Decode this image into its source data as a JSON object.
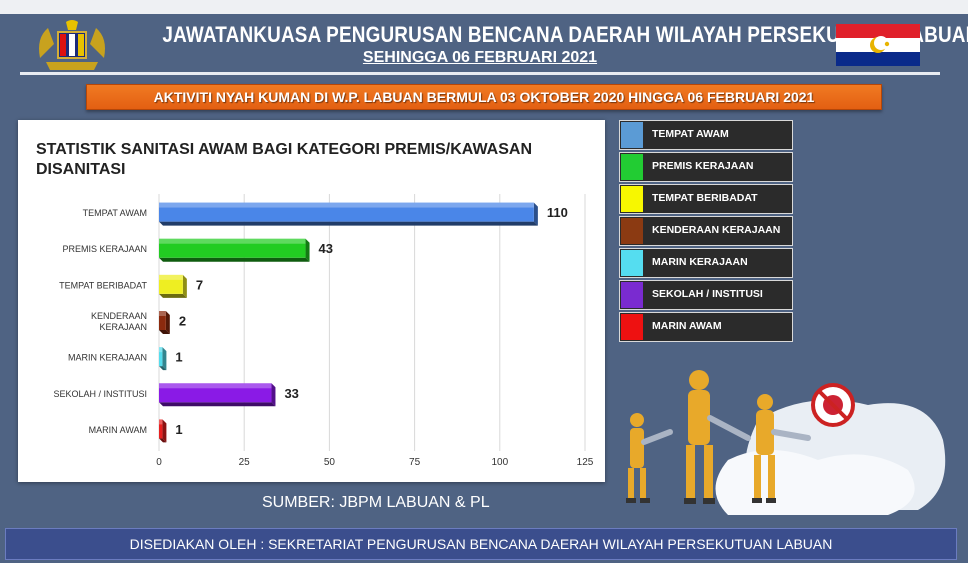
{
  "header": {
    "title": "JAWATANKUASA PENGURUSAN BENCANA DAERAH WILAYAH PERSEKUTUAN  LABUAN",
    "subtitle": "SEHINGGA 06 FEBRUARI 2021"
  },
  "banner": {
    "text": "AKTIVITI NYAH KUMAN DI W.P. LABUAN BERMULA 03 OKTOBER 2020 HINGGA 06 FEBRUARI 2021"
  },
  "chart_data": {
    "type": "bar",
    "orientation": "horizontal",
    "title": "STATISTIK SANITASI AWAM BAGI KATEGORI PREMIS/KAWASAN DISANITASI",
    "categories": [
      "TEMPAT AWAM",
      "PREMIS KERAJAAN",
      "TEMPAT BERIBADAT",
      "KENDERAAN KERAJAAN",
      "MARIN KERAJAAN",
      "SEKOLAH / INSTITUSI",
      "MARIN AWAM"
    ],
    "category_lines": [
      [
        "TEMPAT AWAM"
      ],
      [
        "PREMIS KERAJAAN"
      ],
      [
        "TEMPAT BERIBADAT"
      ],
      [
        "KENDERAAN",
        "KERAJAAN"
      ],
      [
        "MARIN KERAJAAN"
      ],
      [
        "SEKOLAH / INSTITUSI"
      ],
      [
        "MARIN AWAM"
      ]
    ],
    "values": [
      110,
      43,
      7,
      2,
      1,
      33,
      1
    ],
    "colors": [
      "#4a86e8",
      "#22cc22",
      "#eeee22",
      "#8b2a0e",
      "#55ddee",
      "#8a1ae6",
      "#e82020"
    ],
    "xlim": [
      0,
      125
    ],
    "xticks": [
      0,
      25,
      50,
      75,
      100,
      125
    ],
    "grid": true,
    "legend_position": "right"
  },
  "legend": {
    "items": [
      {
        "label": "TEMPAT AWAM",
        "color": "#5b9bd5"
      },
      {
        "label": "PREMIS KERAJAAN",
        "color": "#22cc33"
      },
      {
        "label": "TEMPAT BERIBADAT",
        "color": "#f7f700"
      },
      {
        "label": "KENDERAAN KERAJAAN",
        "color": "#8b3a12"
      },
      {
        "label": "MARIN KERAJAAN",
        "color": "#55ddf0"
      },
      {
        "label": "SEKOLAH / INSTITUSI",
        "color": "#7a2bd0"
      },
      {
        "label": "MARIN AWAM",
        "color": "#ee1111"
      }
    ]
  },
  "source": "SUMBER: JBPM LABUAN & PL",
  "footer": "DISEDIAKAN OLEH : SEKRETARIAT PENGURUSAN BENCANA DAERAH WILAYAH PERSEKUTUAN LABUAN"
}
